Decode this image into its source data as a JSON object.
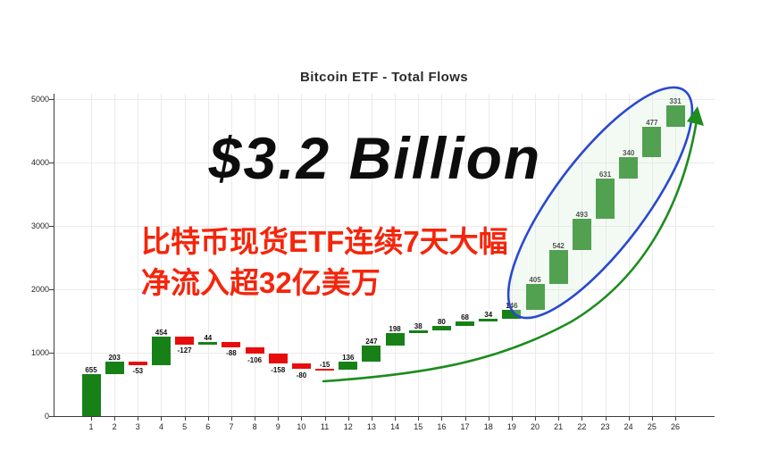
{
  "page": {
    "background": "#ffffff"
  },
  "chart_data": {
    "type": "bar",
    "subtype": "waterfall",
    "title": "Bitcoin ETF - Total Flows",
    "categories": [
      "1",
      "2",
      "3",
      "4",
      "5",
      "6",
      "7",
      "8",
      "9",
      "10",
      "11",
      "12",
      "13",
      "14",
      "15",
      "16",
      "17",
      "18",
      "19",
      "20",
      "21",
      "22",
      "23",
      "24",
      "25",
      "26"
    ],
    "values": [
      655,
      203,
      -53,
      454,
      -127,
      44,
      -88,
      -106,
      -158,
      -80,
      -15,
      136,
      247,
      198,
      38,
      80,
      68,
      34,
      146,
      405,
      542,
      493,
      631,
      340,
      477,
      331
    ],
    "running_total_final": 4895,
    "last_7_days_sum": 3219,
    "xlabel": "",
    "ylabel": "",
    "ylim": [
      0,
      5000
    ],
    "y_ticks": [
      0,
      1000,
      2000,
      3000,
      4000,
      5000
    ],
    "grid": true,
    "legend": "none",
    "colors": {
      "positive_bar": "#178017",
      "negative_bar": "#e80d0d",
      "grid_line": "#ebebeb",
      "axis_line": "#3c3c3c",
      "tick_label": "#222222",
      "data_label": "#111111",
      "title": "#2b2b2b"
    },
    "annotations": [
      {
        "name": "highlight-ellipse",
        "shape": "ellipse",
        "circled_days": "20-26",
        "stroke": "#2a49cf",
        "fill": "rgba(215,240,215,0.30)"
      },
      {
        "name": "trend-arrow",
        "shape": "curved-arrow",
        "stroke": "#1e8c1e"
      }
    ]
  },
  "overlays": {
    "headline": "$3.2 Billion",
    "headline_color": "#0d0d0d",
    "subheadline_line1": "比特币现货ETF连续7天大幅",
    "subheadline_line2": "净流入超32亿美万",
    "subheadline_color": "#f5250b"
  }
}
